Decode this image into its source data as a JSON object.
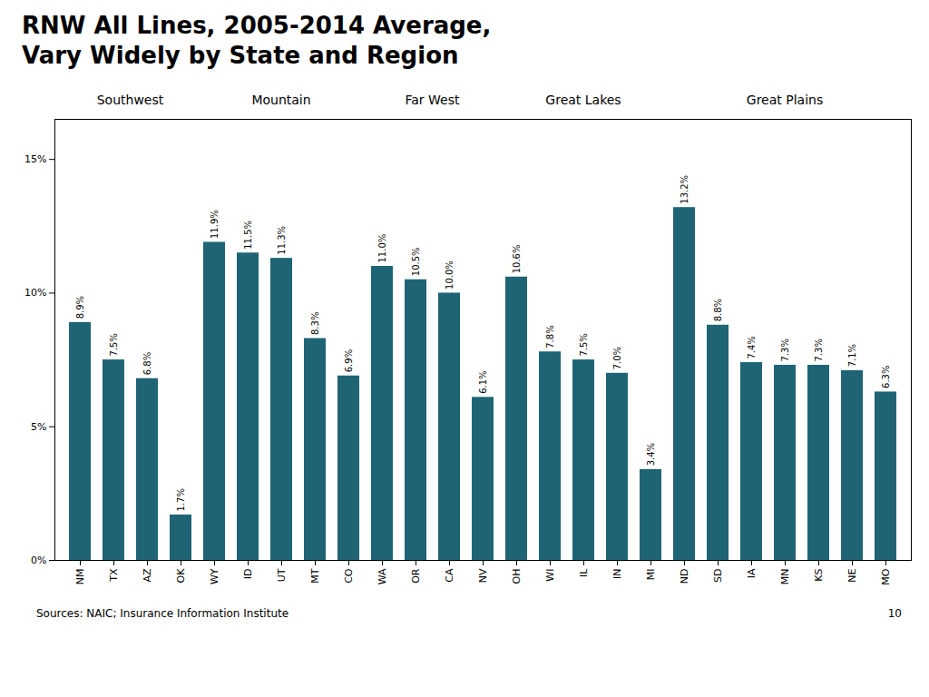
{
  "chart_data": {
    "type": "bar",
    "title": "RNW All Lines, 2005-2014 Average,\nVary Widely by State and Region",
    "categories": [
      "NM",
      "TX",
      "AZ",
      "OK",
      "WY",
      "ID",
      "UT",
      "MT",
      "CO",
      "WA",
      "OR",
      "CA",
      "NV",
      "OH",
      "WI",
      "IL",
      "IN",
      "MI",
      "ND",
      "SD",
      "IA",
      "MN",
      "KS",
      "NE",
      "MO"
    ],
    "values": [
      8.9,
      7.5,
      6.8,
      1.7,
      11.9,
      11.5,
      11.3,
      8.3,
      6.9,
      11.0,
      10.5,
      10.0,
      6.1,
      10.6,
      7.8,
      7.5,
      7.0,
      3.4,
      13.2,
      8.8,
      7.4,
      7.3,
      7.3,
      7.1,
      6.3
    ],
    "value_labels": [
      "8.9%",
      "7.5%",
      "6.8%",
      "1.7%",
      "11.9%",
      "11.5%",
      "11.3%",
      "8.3%",
      "6.9%",
      "11.0%",
      "10.5%",
      "10.0%",
      "6.1%",
      "10.6%",
      "7.8%",
      "7.5%",
      "7.0%",
      "3.4%",
      "13.2%",
      "8.8%",
      "7.4%",
      "7.3%",
      "7.3%",
      "7.1%",
      "6.3%"
    ],
    "data_labels": true,
    "color": "#1f6475",
    "ylim": [
      0,
      16.5
    ],
    "yticks": [
      {
        "value": 0,
        "label": "0%"
      },
      {
        "value": 5,
        "label": "5%"
      },
      {
        "value": 10,
        "label": "10%"
      },
      {
        "value": 15,
        "label": "15%"
      }
    ],
    "grid": false,
    "annotations": [
      {
        "text": "Southwest",
        "from": "NM",
        "to": "OK"
      },
      {
        "text": "Mountain",
        "from": "WY",
        "to": "CO"
      },
      {
        "text": "Far West",
        "from": "WA",
        "to": "NV"
      },
      {
        "text": "Great Lakes",
        "from": "OH",
        "to": "MI"
      },
      {
        "text": "Great Plains",
        "from": "ND",
        "to": "MO"
      }
    ],
    "source": "Sources:  NAIC; Insurance Information Institute",
    "page_number": "10"
  }
}
